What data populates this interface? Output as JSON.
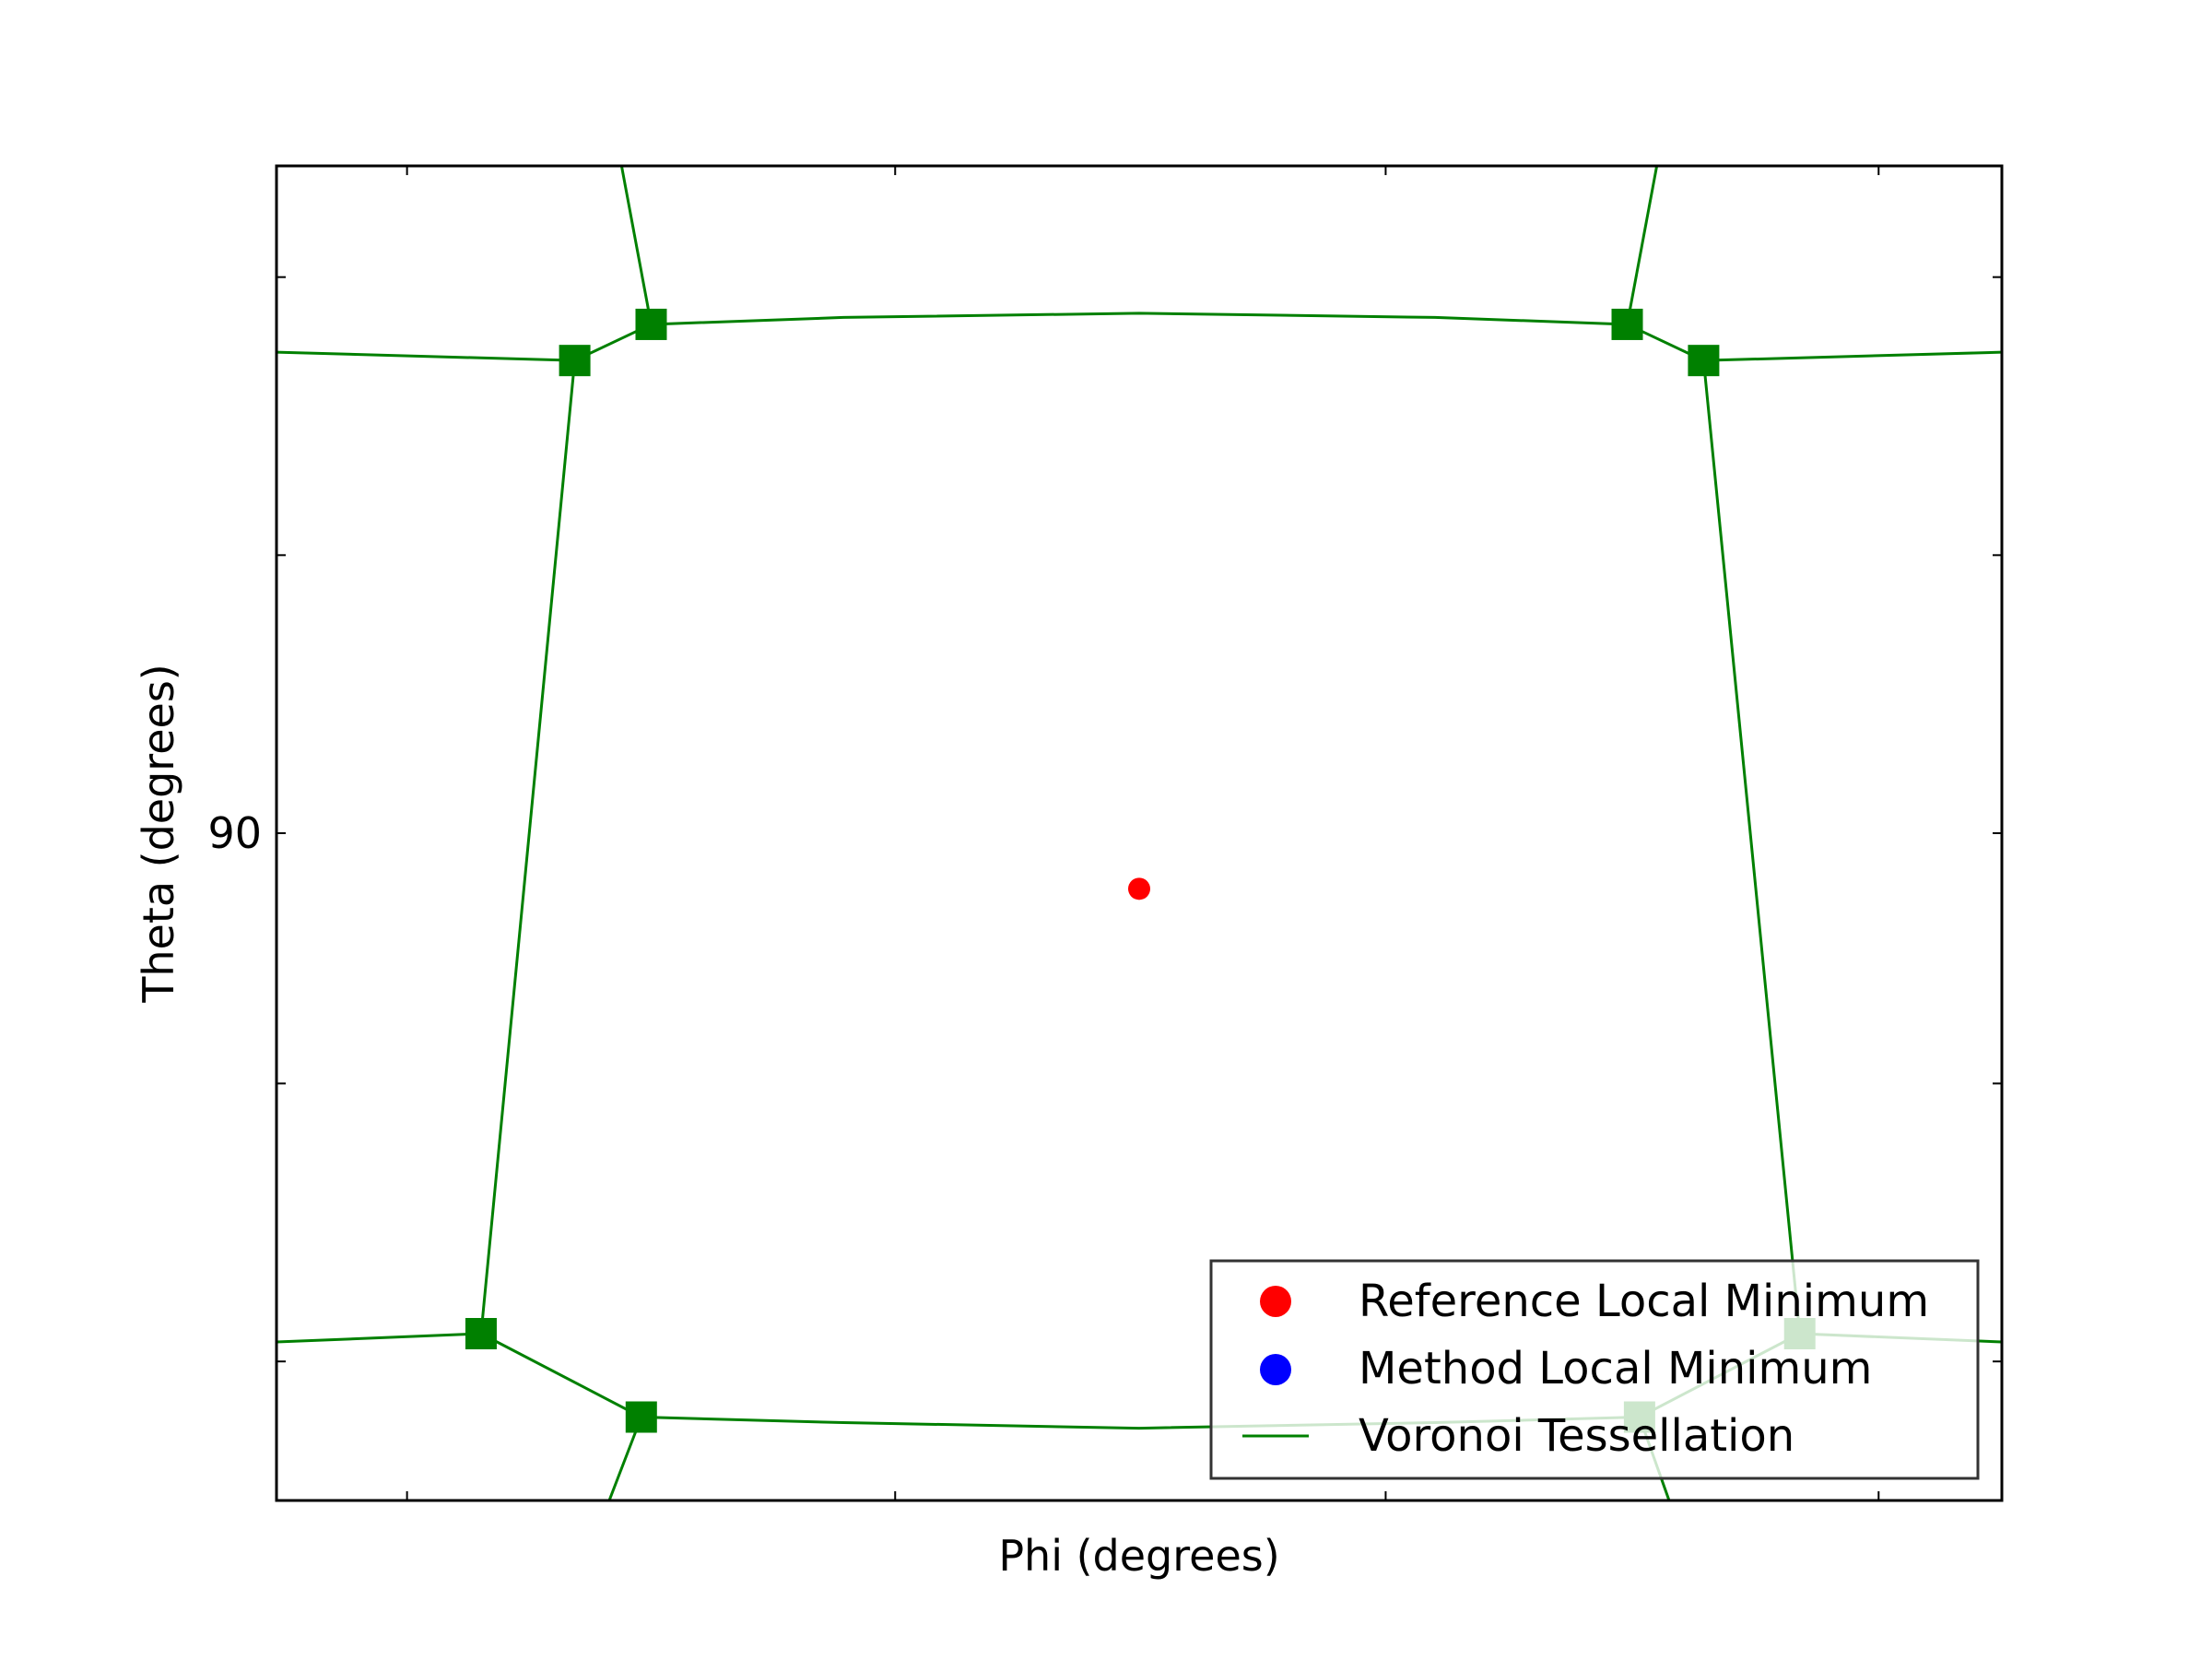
{
  "chart_data": {
    "type": "scatter",
    "title": "",
    "xlabel": "Phi (degrees)",
    "ylabel": "Theta (degrees)",
    "xlim": [
      52,
      122
    ],
    "ylim": [
      66,
      114
    ],
    "x_ticks": [
      57.2958,
      77.1,
      97.0,
      117.0
    ],
    "x_tick_labels": [
      "",
      "",
      "",
      ""
    ],
    "y_ticks": [
      71,
      81,
      90,
      100,
      110
    ],
    "y_tick_labels": [
      "",
      "",
      "90",
      "",
      ""
    ],
    "grid": false,
    "legend_position": "lower-right",
    "colors": {
      "reference": "#ff0000",
      "method": "#0000ff",
      "voronoi": "#008000",
      "frame": "#000000",
      "legend_border": "#333333"
    },
    "legend": {
      "reference": "Reference Local Minimum",
      "method": "Method Local Minimum",
      "voronoi": "Voronoi Tessellation"
    },
    "series": [
      {
        "name": "Reference Local Minimum",
        "kind": "points",
        "points": [
          [
            87.0,
            88.0
          ]
        ]
      },
      {
        "name": "Method Local Minimum",
        "kind": "points",
        "points": []
      },
      {
        "name": "Voronoi Tessellation",
        "kind": "voronoi",
        "vertices": [
          [
            64.1,
            107.0
          ],
          [
            67.2,
            108.3
          ],
          [
            106.8,
            108.3
          ],
          [
            109.9,
            107.0
          ],
          [
            60.3,
            72.0
          ],
          [
            66.8,
            69.0
          ],
          [
            107.3,
            69.0
          ],
          [
            113.8,
            72.0
          ]
        ],
        "edges": [
          [
            [
              52.0,
              107.3
            ],
            [
              64.1,
              107.0
            ]
          ],
          [
            [
              64.1,
              107.0
            ],
            [
              67.2,
              108.3
            ]
          ],
          [
            [
              67.2,
              108.3
            ],
            [
              75.0,
              108.55
            ],
            [
              87.0,
              108.7
            ],
            [
              99.0,
              108.55
            ],
            [
              106.8,
              108.3
            ]
          ],
          [
            [
              106.8,
              108.3
            ],
            [
              109.9,
              107.0
            ]
          ],
          [
            [
              109.9,
              107.0
            ],
            [
              122.0,
              107.3
            ]
          ],
          [
            [
              67.2,
              108.3
            ],
            [
              66.0,
              114.0
            ]
          ],
          [
            [
              106.8,
              108.3
            ],
            [
              108.0,
              114.0
            ]
          ],
          [
            [
              64.1,
              107.0
            ],
            [
              60.3,
              72.0
            ]
          ],
          [
            [
              109.9,
              107.0
            ],
            [
              113.8,
              72.0
            ]
          ],
          [
            [
              52.0,
              71.7
            ],
            [
              60.3,
              72.0
            ]
          ],
          [
            [
              60.3,
              72.0
            ],
            [
              66.8,
              69.0
            ]
          ],
          [
            [
              66.8,
              69.0
            ],
            [
              75.0,
              68.8
            ],
            [
              87.0,
              68.6
            ],
            [
              99.0,
              68.8
            ],
            [
              107.3,
              69.0
            ]
          ],
          [
            [
              107.3,
              69.0
            ],
            [
              113.8,
              72.0
            ]
          ],
          [
            [
              113.8,
              72.0
            ],
            [
              122.0,
              71.7
            ]
          ],
          [
            [
              66.8,
              69.0
            ],
            [
              65.5,
              66.0
            ]
          ],
          [
            [
              107.3,
              69.0
            ],
            [
              108.5,
              66.0
            ]
          ]
        ]
      }
    ]
  }
}
